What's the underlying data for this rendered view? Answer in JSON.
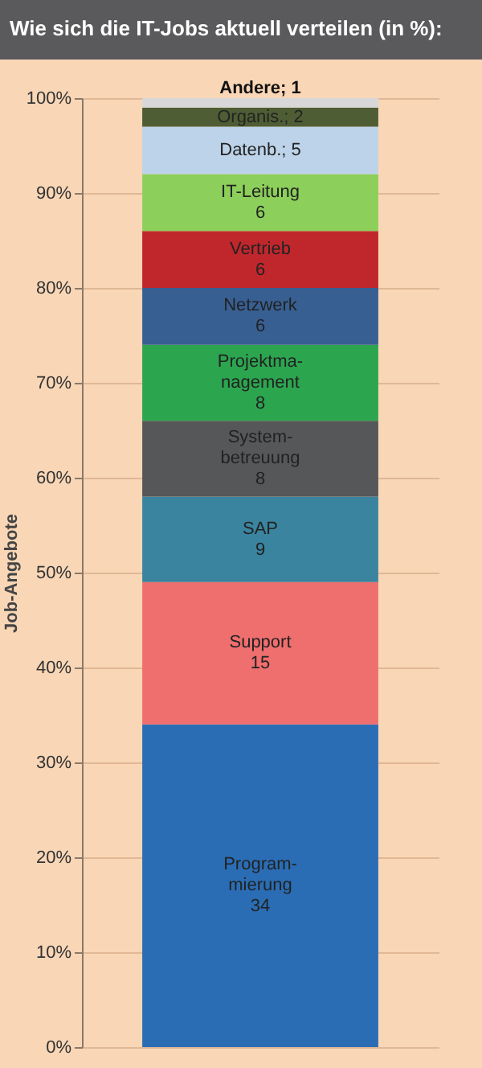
{
  "chart_data": {
    "type": "bar",
    "title": "Wie sich die IT-Jobs aktuell verteilen (in %):",
    "ylabel": "Job-Angebote",
    "categories": [
      null
    ],
    "stacked": true,
    "legend": false,
    "grid": "y",
    "ylim": [
      0,
      100
    ],
    "yticks": [
      {
        "value": 0,
        "label": "0%"
      },
      {
        "value": 10,
        "label": "10%"
      },
      {
        "value": 20,
        "label": "20%"
      },
      {
        "value": 30,
        "label": "30%"
      },
      {
        "value": 40,
        "label": "40%"
      },
      {
        "value": 50,
        "label": "50%"
      },
      {
        "value": 60,
        "label": "60%"
      },
      {
        "value": 70,
        "label": "70%"
      },
      {
        "value": 80,
        "label": "80%"
      },
      {
        "value": 90,
        "label": "90%"
      },
      {
        "value": 100,
        "label": "100%"
      }
    ],
    "series": [
      {
        "name": "Program- mierung",
        "color": "#2a6db5",
        "values": [
          34
        ],
        "value_labels": [
          "34"
        ]
      },
      {
        "name": "Support",
        "color": "#ef6e6e",
        "values": [
          15
        ],
        "value_labels": [
          "15"
        ]
      },
      {
        "name": "SAP",
        "color": "#3a849f",
        "values": [
          9
        ],
        "value_labels": [
          "9"
        ]
      },
      {
        "name": "System- betreuung",
        "color": "#555759",
        "values": [
          8
        ],
        "value_labels": [
          "8"
        ]
      },
      {
        "name": "Projektma- nagement",
        "color": "#2ca54f",
        "values": [
          8
        ],
        "value_labels": [
          "8"
        ]
      },
      {
        "name": "Netzwerk",
        "color": "#375f92",
        "values": [
          6
        ],
        "value_labels": [
          "6"
        ]
      },
      {
        "name": "Vertrieb",
        "color": "#c0272d",
        "values": [
          6
        ],
        "value_labels": [
          "6"
        ]
      },
      {
        "name": "IT-Leitung",
        "color": "#8ccf5a",
        "values": [
          6
        ],
        "value_labels": [
          "6"
        ]
      },
      {
        "name": "Datenb.",
        "color": "#bcd3e9",
        "values": [
          5
        ],
        "value_labels": [
          "; 5"
        ]
      },
      {
        "name": "Organis.",
        "color": "#4f5d34",
        "values": [
          2
        ],
        "value_labels": [
          "; 2"
        ]
      },
      {
        "name": "Andere",
        "color": "#d8d8d8",
        "values": [
          1
        ],
        "value_labels": [
          "; 1"
        ]
      }
    ]
  }
}
